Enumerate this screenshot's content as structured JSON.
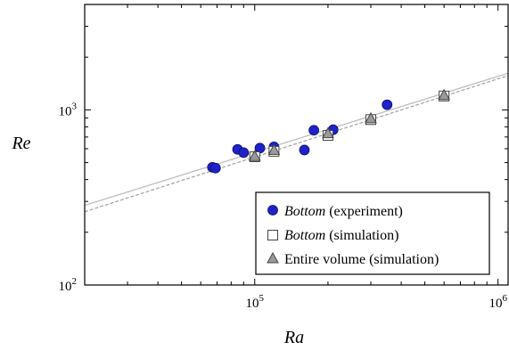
{
  "chart_data": {
    "type": "scatter",
    "title": "",
    "xlabel": "Ra",
    "ylabel": "Re",
    "xscale": "log",
    "yscale": "log",
    "xlim": [
      20000,
      1100000
    ],
    "ylim": [
      100,
      4000
    ],
    "grid": false,
    "legend_position": "bottom-right",
    "x_ticks": [
      {
        "value": 100000,
        "base": "10",
        "exp": "5"
      },
      {
        "value": 1000000,
        "base": "10",
        "exp": "6"
      }
    ],
    "y_ticks": [
      {
        "value": 100,
        "base": "10",
        "exp": "2"
      },
      {
        "value": 1000,
        "base": "10",
        "exp": "3"
      }
    ],
    "series": [
      {
        "name": "Bottom (experiment)",
        "name_italic": "Bottom",
        "name_rest": " (experiment)",
        "marker": "circle",
        "color": "#1e22c8",
        "x": [
          67000,
          69000,
          85000,
          90000,
          105000,
          120000,
          160000,
          175000,
          210000,
          350000
        ],
        "y": [
          470,
          465,
          595,
          570,
          605,
          615,
          590,
          765,
          770,
          1070
        ]
      },
      {
        "name": "Bottom (simulation)",
        "name_italic": "Bottom",
        "name_rest": " (simulation)",
        "marker": "square",
        "color": "#ffffff",
        "x": [
          100000,
          120000,
          200000,
          300000,
          600000
        ],
        "y": [
          540,
          580,
          715,
          880,
          1200
        ]
      },
      {
        "name": "Entire volume (simulation)",
        "name_italic": "",
        "name_rest": "Entire volume (simulation)",
        "marker": "triangle",
        "color": "#9a9a9a",
        "x": [
          100000,
          120000,
          200000,
          300000,
          600000
        ],
        "y": [
          545,
          590,
          735,
          895,
          1215
        ]
      }
    ],
    "fit_lines": [
      {
        "style": "solid",
        "color": "#b8b8b8",
        "x": [
          20000,
          1100000
        ],
        "y": [
          285,
          1620
        ]
      },
      {
        "style": "dashed",
        "color": "#a0a0a0",
        "x": [
          20000,
          1100000
        ],
        "y": [
          262,
          1570
        ]
      }
    ]
  }
}
